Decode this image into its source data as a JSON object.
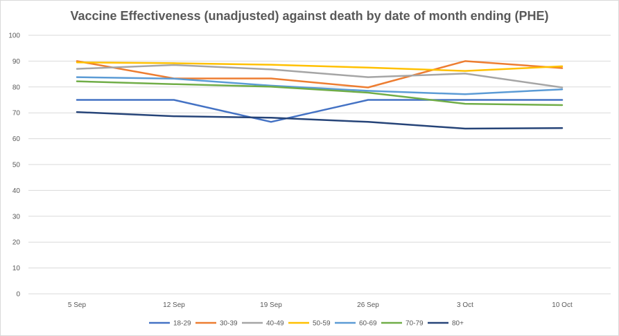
{
  "chart_data": {
    "type": "line",
    "title": "Vaccine Effectiveness (unadjusted) against death by date of month ending (PHE)",
    "xlabel": "",
    "ylabel": "",
    "categories": [
      "5 Sep",
      "12 Sep",
      "19 Sep",
      "26 Sep",
      "3 Oct",
      "10 Oct"
    ],
    "ylim": [
      0,
      100
    ],
    "yticks": [
      0,
      10,
      20,
      30,
      40,
      50,
      60,
      70,
      80,
      90,
      100
    ],
    "grid": true,
    "legend_position": "bottom",
    "series": [
      {
        "name": "18-29",
        "color": "#4472C4",
        "values": [
          75,
          75,
          66.5,
          75,
          75,
          75
        ]
      },
      {
        "name": "30-39",
        "color": "#ED7D31",
        "values": [
          90,
          83.3,
          83.3,
          79.8,
          90,
          87.3
        ]
      },
      {
        "name": "40-49",
        "color": "#A5A5A5",
        "values": [
          87,
          88.5,
          86.8,
          83.8,
          85.2,
          79.8
        ]
      },
      {
        "name": "50-59",
        "color": "#FFC000",
        "values": [
          89.5,
          89.2,
          88.6,
          87.5,
          86.2,
          88
        ]
      },
      {
        "name": "60-69",
        "color": "#5B9BD5",
        "values": [
          83.8,
          83.2,
          80.5,
          78.5,
          77.2,
          79.1
        ]
      },
      {
        "name": "70-79",
        "color": "#70AD47",
        "values": [
          82.2,
          81.1,
          80.1,
          77.8,
          73.5,
          73
        ]
      },
      {
        "name": "80+",
        "color": "#264478",
        "values": [
          70.3,
          68.7,
          68.1,
          66.5,
          63.9,
          64.1
        ]
      }
    ]
  }
}
